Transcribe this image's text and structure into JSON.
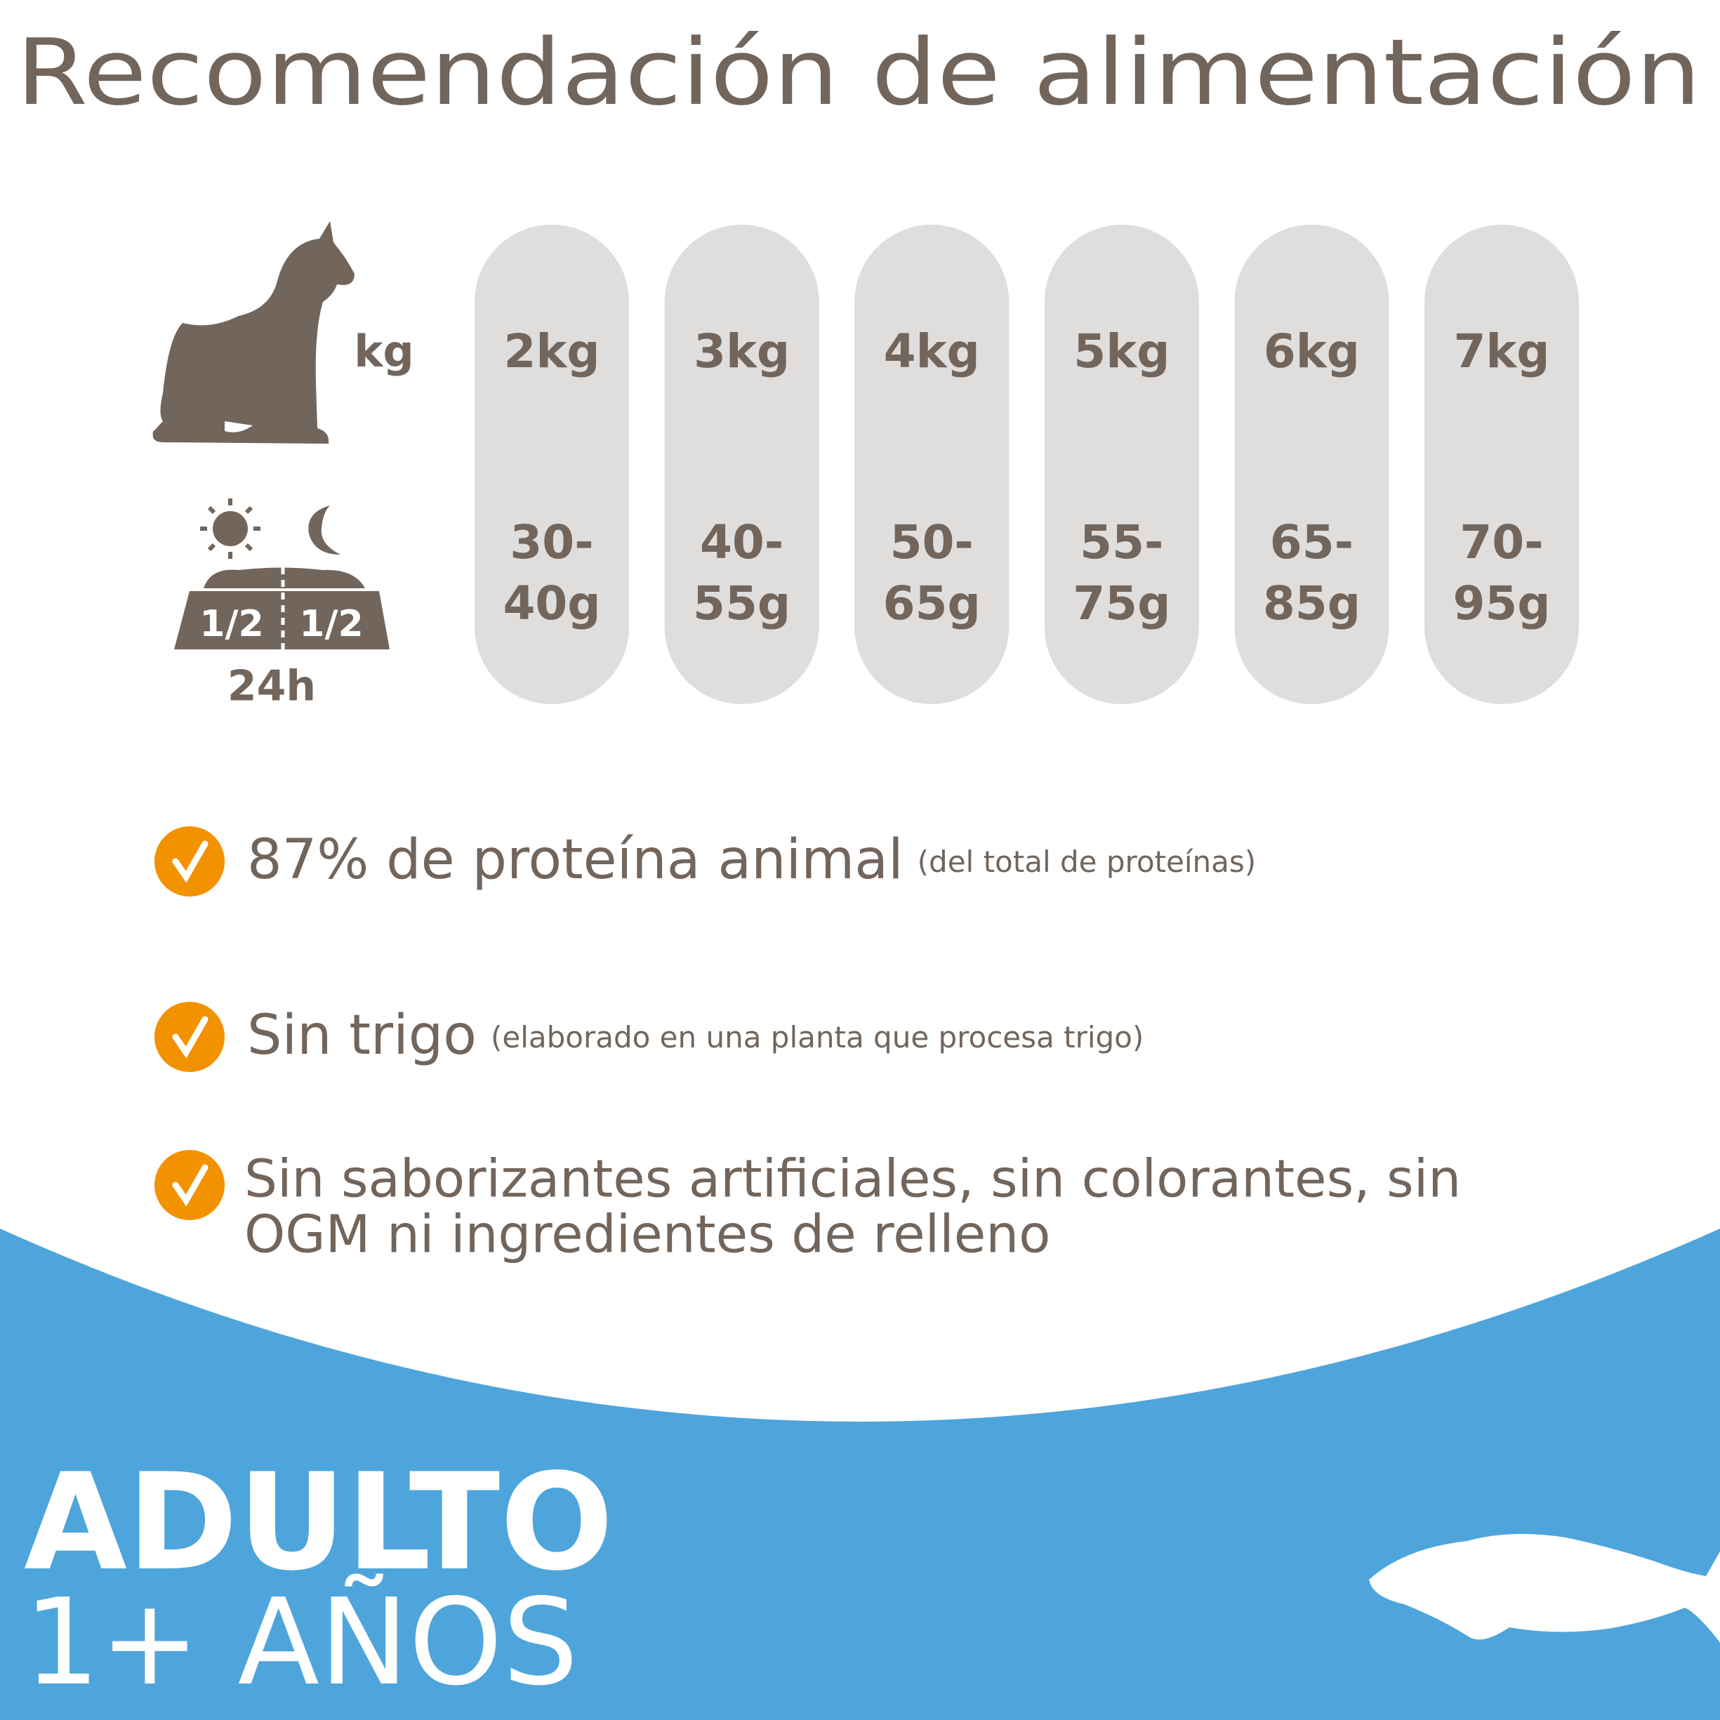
{
  "title": "Recomendación de alimentación",
  "weight_unit": "kg",
  "portions": [
    "1/2",
    "1/2"
  ],
  "period": "24h",
  "columns": [
    {
      "weight": "2kg",
      "amount": [
        "30-",
        "40g"
      ]
    },
    {
      "weight": "3kg",
      "amount": [
        "40-",
        "55g"
      ]
    },
    {
      "weight": "4kg",
      "amount": [
        "50-",
        "65g"
      ]
    },
    {
      "weight": "5kg",
      "amount": [
        "55-",
        "75g"
      ]
    },
    {
      "weight": "6kg",
      "amount": [
        "65-",
        "85g"
      ]
    },
    {
      "weight": "7kg",
      "amount": [
        "70-",
        "95g"
      ]
    }
  ],
  "features": [
    {
      "text": "87% de proteína animal",
      "note": "(del total de proteínas)"
    },
    {
      "text": "Sin trigo",
      "note": "(elaborado en una planta que procesa trigo)"
    },
    {
      "lines": [
        "Sin saborizantes artificiales, sin colorantes, sin",
        "OGM ni ingredientes de relleno"
      ]
    }
  ],
  "footer": {
    "stage": "ADULTO",
    "age": "1+ AÑOS"
  }
}
